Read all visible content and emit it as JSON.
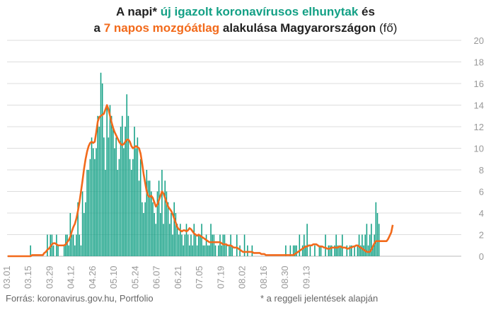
{
  "title": {
    "line1_a": "A napi* ",
    "line1_green": "új igazolt koronavírusos elhunytak",
    "line1_b": " és",
    "line2_a": "a ",
    "line2_orange": "7 napos mozgóátlag",
    "line2_b": " alakulása Magyarországon ",
    "line2_unit": "(fő)"
  },
  "source": "Forrás: koronavirus.gov.hu, Portfolio",
  "note": "* a reggeli jelentések alapján",
  "colors": {
    "bar": "#13a085",
    "line": "#f26a1b",
    "grid": "#dddddd",
    "axis_text": "#999999"
  },
  "chart_data": {
    "type": "bar",
    "x_tick_labels": [
      "03.01",
      "03.15",
      "03.29",
      "04.12",
      "04.26",
      "05.10",
      "05.24",
      "06.07",
      "06.21",
      "07.05",
      "07.19",
      "08.02",
      "08.16",
      "08.30",
      "09.13"
    ],
    "y_tick_labels": [
      "0",
      "2",
      "4",
      "6",
      "8",
      "10",
      "12",
      "14",
      "16",
      "18",
      "20"
    ],
    "ylim": [
      0,
      20
    ],
    "y_axis_side": "right",
    "grid": true,
    "series": [
      {
        "type": "bar",
        "values": [
          0,
          0,
          0,
          0,
          0,
          0,
          0,
          0,
          0,
          0,
          0,
          0,
          0,
          0,
          0,
          1,
          0,
          0,
          0,
          0,
          0,
          0,
          0,
          0,
          0,
          0,
          2,
          0,
          2,
          2,
          1,
          0,
          2,
          1,
          0,
          0,
          0,
          1,
          2,
          2,
          1,
          4,
          2,
          2,
          1,
          2,
          5,
          2,
          1,
          6,
          4,
          5,
          8,
          8,
          9,
          11,
          10,
          9,
          10,
          13,
          12,
          17,
          16,
          11,
          8,
          14,
          11,
          14,
          13,
          12,
          10,
          11,
          8,
          9,
          12,
          13,
          10,
          12,
          15,
          13,
          9,
          8,
          9,
          12,
          10,
          11,
          7,
          9,
          5,
          4,
          5,
          8,
          7,
          7,
          6,
          5,
          4,
          3,
          6,
          7,
          4,
          8,
          3,
          7,
          6,
          5,
          3,
          4,
          2,
          5,
          4,
          3,
          2,
          3,
          2,
          1,
          2,
          3,
          2,
          1,
          2,
          1,
          3,
          2,
          1,
          2,
          2,
          3,
          1,
          1,
          2,
          1,
          1,
          3,
          2,
          2,
          1,
          0,
          1,
          2,
          1,
          2,
          2,
          1,
          0,
          1,
          2,
          1,
          0,
          0,
          2,
          0,
          1,
          0,
          0,
          2,
          0,
          1,
          0,
          0,
          1,
          0,
          0,
          0,
          0,
          0,
          0,
          0,
          0,
          0,
          0,
          0,
          0,
          0,
          0,
          0,
          0,
          0,
          0,
          0,
          0,
          0,
          1,
          0,
          0,
          1,
          0,
          1,
          1,
          1,
          0,
          2,
          0,
          1,
          2,
          1,
          3,
          0,
          1,
          0,
          0,
          1,
          0,
          0,
          1,
          1,
          0,
          0,
          2,
          0,
          1,
          1,
          1,
          0,
          1,
          2,
          1,
          1,
          1,
          2,
          0,
          0,
          1,
          0,
          1,
          1,
          0,
          1,
          0,
          1,
          2,
          1,
          2,
          1,
          2,
          3,
          1,
          2,
          3,
          1,
          2,
          5,
          4,
          3
        ],
        "x_start": "03.01",
        "step_days": 1
      },
      {
        "type": "line",
        "values": [
          0,
          0,
          0,
          0,
          0,
          0,
          0,
          0,
          0,
          0,
          0,
          0,
          0,
          0,
          0,
          0,
          0.1,
          0.1,
          0.1,
          0.1,
          0.1,
          0.1,
          0.1,
          0.1,
          0.3,
          0.4,
          0.6,
          0.7,
          0.9,
          1.1,
          1.2,
          1.2,
          1.1,
          1.0,
          1.0,
          1.0,
          1.0,
          1.0,
          1.1,
          1.3,
          1.5,
          1.8,
          2.3,
          2.7,
          3.0,
          3.5,
          4.2,
          5.0,
          6.0,
          7.0,
          8.1,
          9.0,
          9.7,
          10.2,
          10.5,
          10.6,
          10.5,
          10.6,
          11.5,
          12.5,
          12.9,
          13.0,
          13.1,
          13.2,
          13.6,
          14.0,
          13.6,
          13.0,
          12.4,
          11.9,
          11.5,
          11.2,
          10.9,
          10.6,
          10.4,
          10.3,
          10.4,
          10.6,
          10.8,
          10.8,
          10.6,
          10.2,
          10.0,
          10.1,
          10.2,
          10.1,
          10.0,
          9.5,
          8.6,
          7.6,
          6.8,
          6.0,
          5.6,
          5.5,
          5.6,
          5.4,
          5.0,
          4.6,
          4.8,
          5.2,
          5.6,
          6.0,
          5.8,
          5.4,
          5.0,
          4.6,
          4.4,
          4.2,
          3.9,
          3.5,
          3.1,
          2.7,
          2.5,
          2.4,
          2.3,
          2.4,
          2.4,
          2.3,
          2.4,
          2.6,
          2.5,
          2.3,
          2.1,
          2.0,
          1.9,
          2.0,
          1.9,
          1.8,
          1.7,
          1.6,
          1.5,
          1.4,
          1.3,
          1.3,
          1.3,
          1.3,
          1.3,
          1.3,
          1.3,
          1.3,
          1.2,
          1.1,
          1.1,
          1.1,
          1.0,
          1.0,
          1.0,
          0.9,
          0.8,
          0.8,
          0.8,
          0.7,
          0.6,
          0.5,
          0.4,
          0.4,
          0.4,
          0.4,
          0.4,
          0.4,
          0.4,
          0.3,
          0.3,
          0.3,
          0.3,
          0.3,
          0.2,
          0.2,
          0.2,
          0.1,
          0.1,
          0.1,
          0.1,
          0.1,
          0.1,
          0.1,
          0.1,
          0.1,
          0.1,
          0.1,
          0.1,
          0.1,
          0.1,
          0.1,
          0.1,
          0.1,
          0.1,
          0.1,
          0.2,
          0.3,
          0.4,
          0.5,
          0.6,
          0.7,
          0.8,
          0.9,
          0.9,
          1.0,
          1.0,
          1.0,
          1.1,
          1.1,
          1.1,
          1.0,
          0.9,
          0.9,
          0.9,
          0.8,
          0.8,
          0.7,
          0.7,
          0.7,
          0.8,
          0.8,
          0.8,
          0.8,
          0.8,
          0.9,
          0.9,
          0.8,
          0.8,
          0.8,
          0.7,
          0.7,
          0.8,
          0.8,
          0.9,
          0.9,
          1.0,
          1.0,
          0.9,
          0.8,
          0.7,
          0.6,
          0.5,
          0.4,
          0.4,
          0.4,
          0.6,
          0.9,
          1.2,
          1.4,
          1.4,
          1.4,
          1.4,
          1.4,
          1.4,
          1.4,
          1.4,
          1.6,
          1.9,
          2.2,
          2.9
        ],
        "x_start": "03.01",
        "step_days": 1
      }
    ]
  }
}
